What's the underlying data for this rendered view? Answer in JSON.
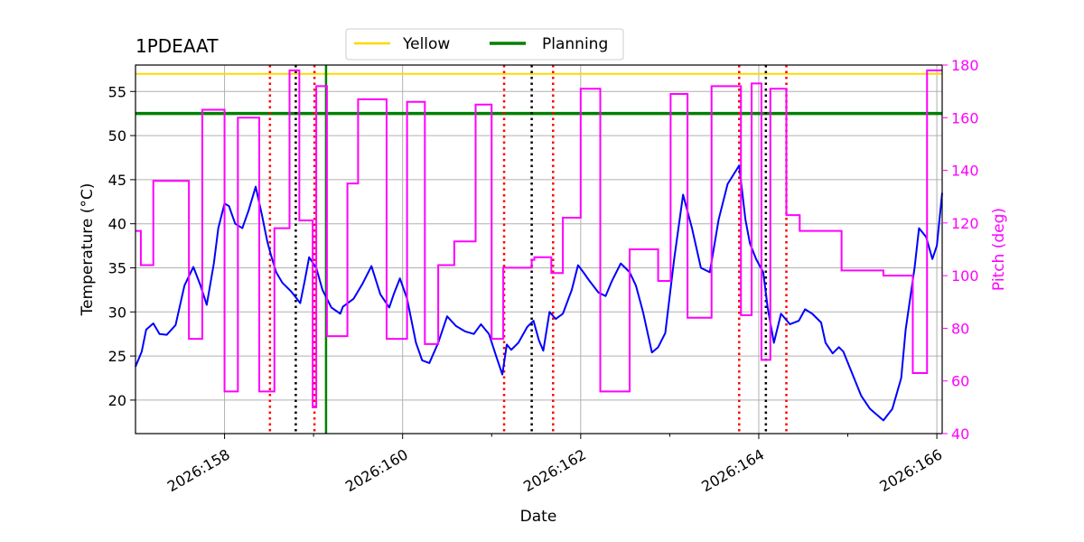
{
  "chart_data": {
    "type": "line",
    "title": "1PDEAAT",
    "xlabel": "Date",
    "ylabel": "Temperature ($^\\circ$C)",
    "ylabel_display": "Temperature (°C)",
    "y2label": "Pitch (deg)",
    "xlim": [
      157.0,
      166.06
    ],
    "ylim": [
      16.2,
      58.0
    ],
    "y2lim": [
      40,
      180
    ],
    "x_ticks": [
      158,
      160,
      162,
      164,
      166
    ],
    "x_tick_labels": [
      "2026:158",
      "2026:160",
      "2026:162",
      "2026:164",
      "2026:166"
    ],
    "x_minor_ticks": [
      159,
      161,
      163,
      165
    ],
    "y_ticks": [
      20,
      25,
      30,
      35,
      40,
      45,
      50,
      55
    ],
    "y_tick_labels": [
      "20",
      "25",
      "30",
      "35",
      "40",
      "45",
      "50",
      "55"
    ],
    "y2_ticks": [
      40,
      60,
      80,
      100,
      120,
      140,
      160,
      180
    ],
    "y2_tick_labels": [
      "40",
      "60",
      "80",
      "100",
      "120",
      "140",
      "160",
      "180"
    ],
    "grid": true,
    "legend_position": "top-center",
    "legend": [
      {
        "label": "Yellow",
        "color": "#ffd700"
      },
      {
        "label": "Planning",
        "color": "#008000"
      }
    ],
    "hlines": [
      {
        "name": "Yellow",
        "y": 57.0,
        "color": "#ffd700"
      },
      {
        "name": "Planning",
        "y": 52.5,
        "color": "#008000"
      }
    ],
    "vlines": [
      {
        "x": 158.51,
        "color": "#ff0000",
        "style": "dotted"
      },
      {
        "x": 158.8,
        "color": "#000000",
        "style": "dotted"
      },
      {
        "x": 159.01,
        "color": "#ff0000",
        "style": "dotted"
      },
      {
        "x": 159.14,
        "color": "#008000",
        "style": "solid"
      },
      {
        "x": 161.14,
        "color": "#ff0000",
        "style": "dotted"
      },
      {
        "x": 161.45,
        "color": "#000000",
        "style": "dotted"
      },
      {
        "x": 161.69,
        "color": "#ff0000",
        "style": "dotted"
      },
      {
        "x": 163.78,
        "color": "#ff0000",
        "style": "dotted"
      },
      {
        "x": 164.08,
        "color": "#000000",
        "style": "dotted"
      },
      {
        "x": 164.31,
        "color": "#ff0000",
        "style": "dotted"
      }
    ],
    "series": [
      {
        "name": "",
        "axis": "left",
        "color": "#0000ff",
        "x": [
          157.0,
          157.07,
          157.12,
          157.2,
          157.27,
          157.35,
          157.45,
          157.55,
          157.65,
          157.73,
          157.8,
          157.88,
          157.93,
          158.0,
          158.05,
          158.12,
          158.2,
          158.27,
          158.35,
          158.42,
          158.48,
          158.52,
          158.58,
          158.65,
          158.75,
          158.85,
          158.9,
          158.95,
          159.03,
          159.1,
          159.2,
          159.3,
          159.33,
          159.45,
          159.55,
          159.65,
          159.75,
          159.85,
          159.9,
          159.97,
          160.05,
          160.15,
          160.22,
          160.3,
          160.4,
          160.5,
          160.6,
          160.7,
          160.8,
          160.88,
          160.97,
          161.05,
          161.12,
          161.17,
          161.22,
          161.3,
          161.4,
          161.47,
          161.53,
          161.58,
          161.65,
          161.72,
          161.8,
          161.9,
          161.97,
          162.03,
          162.1,
          162.2,
          162.28,
          162.35,
          162.45,
          162.55,
          162.62,
          162.7,
          162.8,
          162.87,
          162.95,
          163.05,
          163.15,
          163.25,
          163.35,
          163.45,
          163.55,
          163.65,
          163.78,
          163.85,
          163.9,
          163.97,
          164.05,
          164.1,
          164.17,
          164.25,
          164.35,
          164.45,
          164.52,
          164.6,
          164.7,
          164.75,
          164.83,
          164.9,
          164.95,
          165.05,
          165.15,
          165.25,
          165.4,
          165.5,
          165.6,
          165.65,
          165.75,
          165.8,
          165.88,
          165.95,
          166.0,
          166.06
        ],
        "y": [
          23.8,
          25.5,
          28.0,
          28.7,
          27.5,
          27.4,
          28.5,
          33.0,
          35.1,
          33.0,
          30.8,
          35.5,
          39.5,
          42.3,
          42.0,
          40.0,
          39.5,
          41.5,
          44.2,
          41.0,
          38.0,
          36.5,
          34.5,
          33.3,
          32.3,
          31.0,
          33.5,
          36.2,
          35.0,
          32.5,
          30.5,
          29.8,
          30.6,
          31.5,
          33.2,
          35.2,
          32.0,
          30.5,
          32.0,
          33.8,
          31.5,
          26.5,
          24.5,
          24.2,
          26.5,
          29.5,
          28.4,
          27.8,
          27.5,
          28.6,
          27.5,
          25.0,
          22.9,
          26.3,
          25.7,
          26.5,
          28.3,
          29.0,
          26.8,
          25.6,
          30.0,
          29.2,
          29.8,
          32.5,
          35.3,
          34.5,
          33.5,
          32.2,
          31.8,
          33.5,
          35.5,
          34.5,
          33.0,
          30.0,
          25.4,
          26.0,
          27.6,
          36.0,
          43.3,
          39.5,
          35.0,
          34.5,
          40.5,
          44.5,
          46.6,
          40.5,
          37.8,
          36.0,
          34.5,
          30.5,
          26.5,
          29.8,
          28.6,
          29.0,
          30.3,
          29.8,
          28.8,
          26.5,
          25.3,
          26.0,
          25.5,
          23.0,
          20.5,
          19.0,
          17.7,
          19.0,
          22.5,
          28.0,
          35.0,
          39.5,
          38.5,
          36.0,
          37.5,
          43.5
        ]
      },
      {
        "name": "",
        "axis": "right",
        "color": "#ff00ff",
        "step": true,
        "x": [
          157.0,
          157.06,
          157.2,
          157.35,
          157.6,
          157.65,
          157.75,
          157.8,
          158.0,
          158.06,
          158.15,
          158.24,
          158.39,
          158.48,
          158.56,
          158.73,
          158.84,
          158.91,
          158.99,
          159.03,
          159.15,
          159.3,
          159.38,
          159.5,
          159.75,
          159.82,
          159.9,
          160.05,
          160.1,
          160.25,
          160.3,
          160.4,
          160.43,
          160.58,
          160.62,
          160.82,
          160.9,
          161.0,
          161.08,
          161.13,
          161.15,
          161.45,
          161.48,
          161.52,
          161.67,
          161.73,
          161.8,
          161.91,
          162.0,
          162.19,
          162.22,
          162.5,
          162.55,
          162.72,
          162.87,
          162.92,
          163.01,
          163.04,
          163.2,
          163.28,
          163.47,
          163.54,
          163.8,
          163.82,
          163.92,
          164.0,
          164.03,
          164.1,
          164.13,
          164.28,
          164.31,
          164.46,
          164.78,
          164.93,
          165.35,
          165.4,
          165.5,
          165.73,
          165.85,
          165.89,
          166.06
        ],
        "y": [
          117,
          104,
          136,
          136,
          76,
          76,
          163,
          163,
          56,
          56,
          160,
          160,
          56,
          56,
          118,
          178,
          121,
          121,
          50,
          172,
          77,
          77,
          135,
          167,
          167,
          76,
          76,
          166,
          166,
          74,
          74,
          104,
          104,
          113,
          113,
          165,
          165,
          76,
          76,
          103,
          103,
          106,
          107,
          107,
          101,
          101,
          122,
          122,
          171,
          171,
          56,
          56,
          110,
          110,
          98,
          98,
          169,
          169,
          84,
          84,
          172,
          172,
          85,
          85,
          173,
          173,
          68,
          68,
          171,
          171,
          123,
          117,
          117,
          102,
          102,
          100,
          100,
          63,
          63,
          178,
          178
        ],
        "y_note": "",
        "values_raw": []
      }
    ]
  }
}
